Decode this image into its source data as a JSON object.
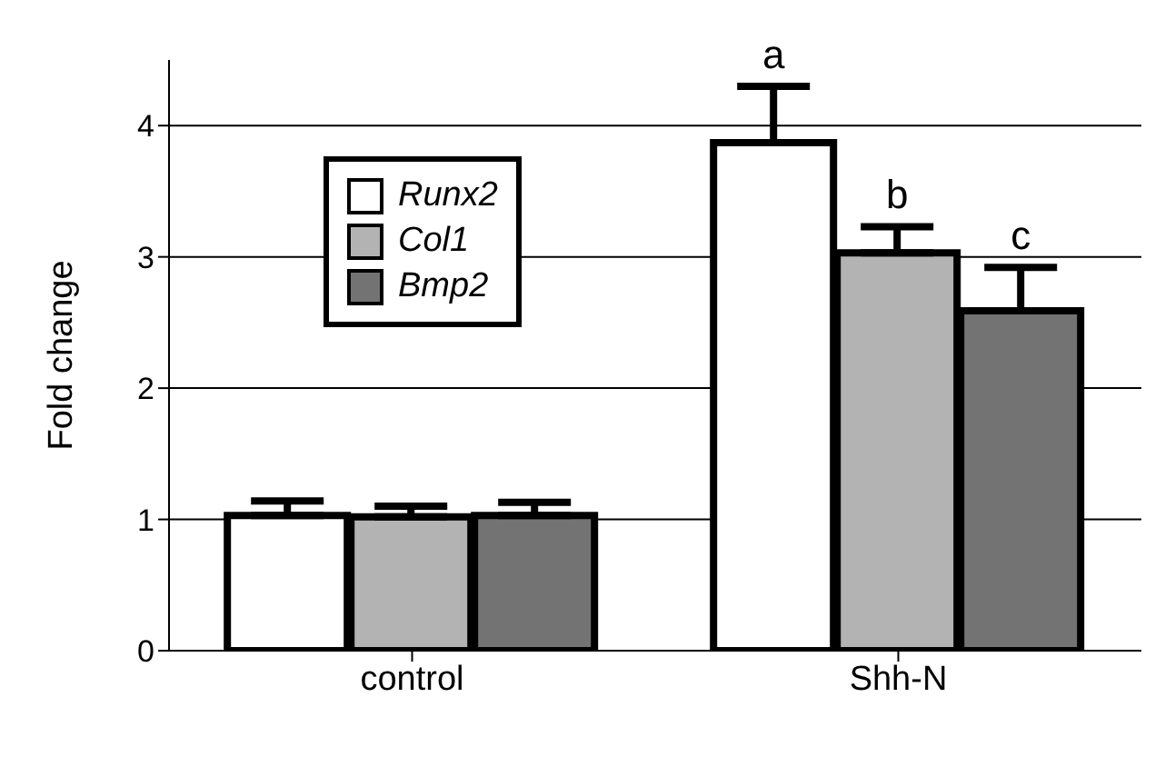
{
  "chart_data": {
    "type": "bar",
    "ylabel": "Fold change",
    "categories": [
      "control",
      "Shh-N"
    ],
    "series": [
      {
        "name": "Runx2",
        "color": "#ffffff",
        "values": [
          1.03,
          3.87
        ],
        "errors": [
          [
            1.03,
            1.14
          ],
          [
            3.87,
            4.3
          ]
        ]
      },
      {
        "name": "Col1",
        "color": "#b3b3b3",
        "values": [
          1.02,
          3.03
        ],
        "errors": [
          [
            1.02,
            1.1
          ],
          [
            3.03,
            3.23
          ]
        ]
      },
      {
        "name": "Bmp2",
        "color": "#737373",
        "values": [
          1.03,
          2.59
        ],
        "errors": [
          [
            1.03,
            1.13
          ],
          [
            2.59,
            2.92
          ]
        ]
      }
    ],
    "ylim": [
      0,
      4.5
    ],
    "yticks": [
      0,
      1,
      2,
      3,
      4
    ],
    "grid": "y",
    "legend": "top left",
    "annotations": [
      "a",
      "b",
      "c"
    ]
  }
}
